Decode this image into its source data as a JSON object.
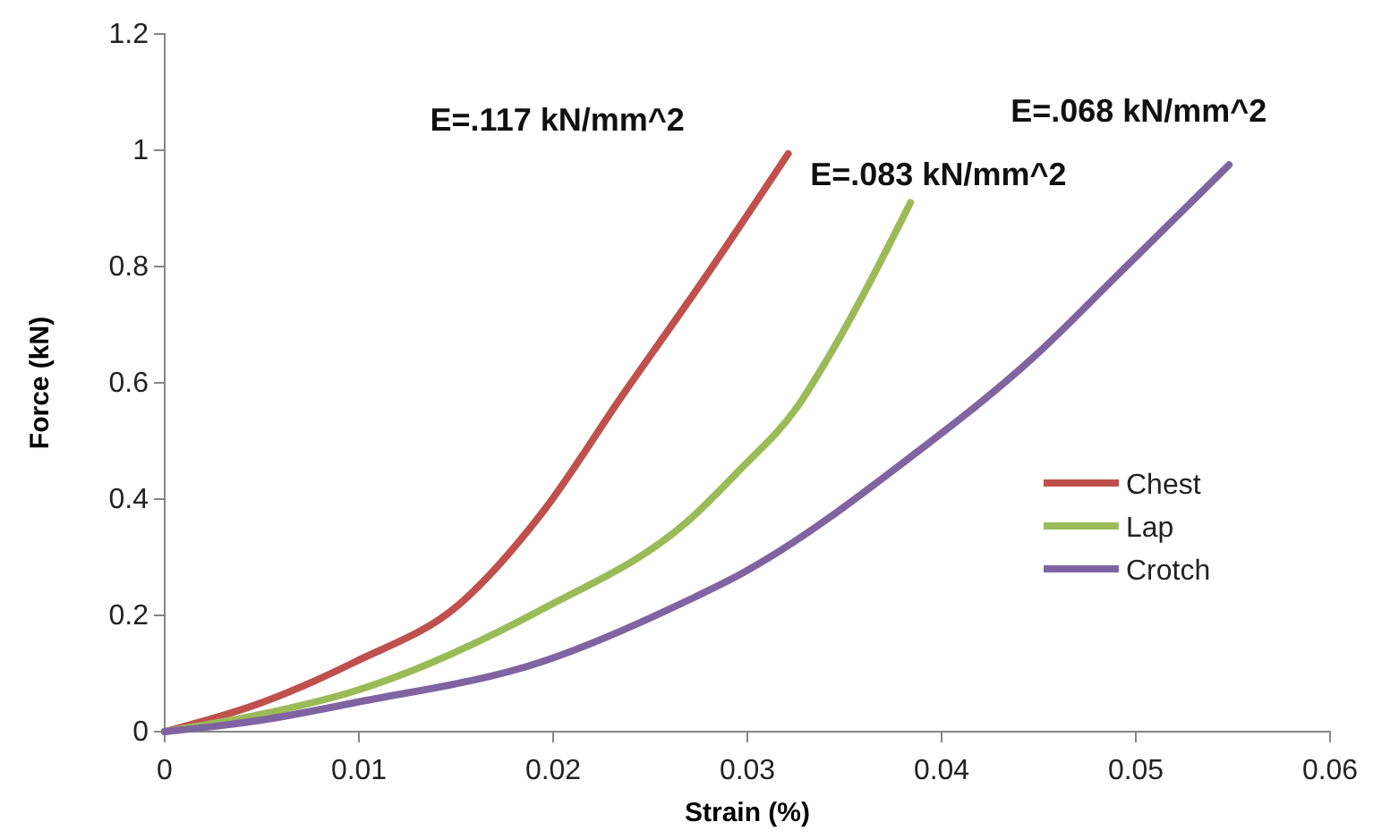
{
  "chart_data": {
    "type": "line",
    "xlabel": "Strain (%)",
    "ylabel": "Force (kN)",
    "xlim": [
      0,
      0.06
    ],
    "xticks": [
      0,
      0.01,
      0.02,
      0.03,
      0.04,
      0.05,
      0.06
    ],
    "ylim": [
      0,
      1.2
    ],
    "yticks": [
      0,
      0.2,
      0.4,
      0.6,
      0.8,
      1,
      1.2
    ],
    "grid": false,
    "legend": "right",
    "marker": "none",
    "line_style": "solid",
    "series": [
      {
        "name": "Chest",
        "color": "#c0504d",
        "x": [
          0,
          0.005,
          0.0098,
          0.0152,
          0.0194,
          0.0236,
          0.0278,
          0.0321
        ],
        "values": [
          0,
          0.05,
          0.12,
          0.22,
          0.375,
          0.58,
          0.78,
          0.994
        ]
      },
      {
        "name": "Lap",
        "color": "#9bbb59",
        "x": [
          0,
          0.005,
          0.0098,
          0.0194,
          0.0272,
          0.0296,
          0.0326,
          0.0341,
          0.0384
        ],
        "values": [
          0,
          0.03,
          0.07,
          0.21,
          0.37,
          0.45,
          0.56,
          0.64,
          0.91
        ]
      },
      {
        "name": "Crotch",
        "color": "#8064a2",
        "x": [
          0,
          0.005,
          0.0098,
          0.0194,
          0.0272,
          0.0296,
          0.0387,
          0.0447,
          0.0492,
          0.0548
        ],
        "values": [
          0,
          0.02,
          0.05,
          0.12,
          0.23,
          0.27,
          0.48,
          0.643,
          0.79,
          0.975
        ]
      }
    ],
    "annotations": [
      "E=.117 kN/mm^2",
      "E=.083 kN/mm^2",
      "E=.068 kN/mm^2"
    ]
  }
}
